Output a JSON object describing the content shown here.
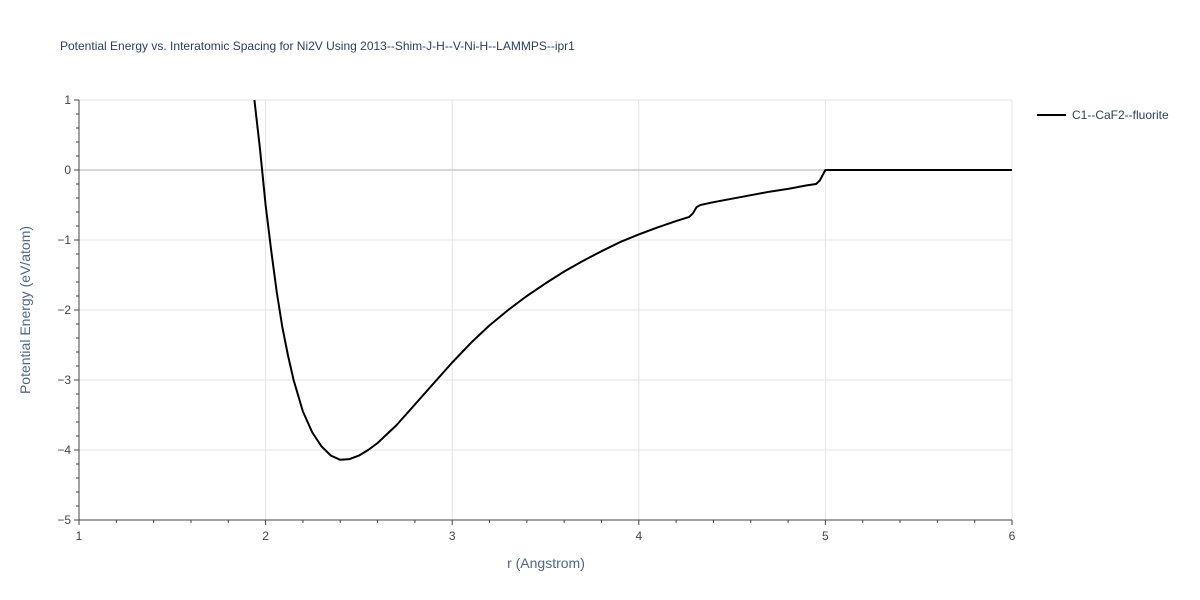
{
  "chart_data": {
    "type": "line",
    "title": "Potential Energy vs. Interatomic Spacing for Ni2V Using 2013--Shim-J-H--V-Ni-H--LAMMPS--ipr1",
    "xlabel": "r (Angstrom)",
    "ylabel": "Potential Energy (eV/atom)",
    "xlim": [
      1,
      6
    ],
    "ylim": [
      -5,
      1
    ],
    "xticks": [
      "1",
      "2",
      "3",
      "4",
      "5",
      "6"
    ],
    "yticks": [
      "1",
      "0",
      "−1",
      "−2",
      "−3",
      "−4",
      "−5"
    ],
    "grid": true,
    "legend_position": "top-right",
    "line_color": "#000000",
    "series": [
      {
        "name": "C1--CaF2--fluorite",
        "x": [
          1.94,
          1.97,
          2.0,
          2.03,
          2.06,
          2.09,
          2.12,
          2.15,
          2.2,
          2.25,
          2.3,
          2.35,
          2.4,
          2.45,
          2.5,
          2.55,
          2.6,
          2.7,
          2.8,
          2.9,
          3.0,
          3.1,
          3.2,
          3.3,
          3.4,
          3.5,
          3.6,
          3.7,
          3.8,
          3.9,
          4.0,
          4.1,
          4.2,
          4.27,
          4.29,
          4.31,
          4.33,
          4.4,
          4.5,
          4.6,
          4.7,
          4.8,
          4.9,
          4.95,
          4.97,
          4.99,
          5.0,
          5.2,
          5.5,
          5.8,
          6.0
        ],
        "y": [
          1.0,
          0.3,
          -0.5,
          -1.15,
          -1.75,
          -2.25,
          -2.65,
          -3.0,
          -3.45,
          -3.75,
          -3.95,
          -4.08,
          -4.14,
          -4.13,
          -4.08,
          -4.0,
          -3.9,
          -3.65,
          -3.35,
          -3.05,
          -2.75,
          -2.47,
          -2.22,
          -2.0,
          -1.8,
          -1.62,
          -1.45,
          -1.3,
          -1.16,
          -1.03,
          -0.92,
          -0.82,
          -0.73,
          -0.67,
          -0.62,
          -0.53,
          -0.5,
          -0.46,
          -0.41,
          -0.36,
          -0.31,
          -0.27,
          -0.22,
          -0.2,
          -0.15,
          -0.05,
          0.0,
          0.0,
          0.0,
          0.0,
          0.0
        ]
      }
    ]
  }
}
